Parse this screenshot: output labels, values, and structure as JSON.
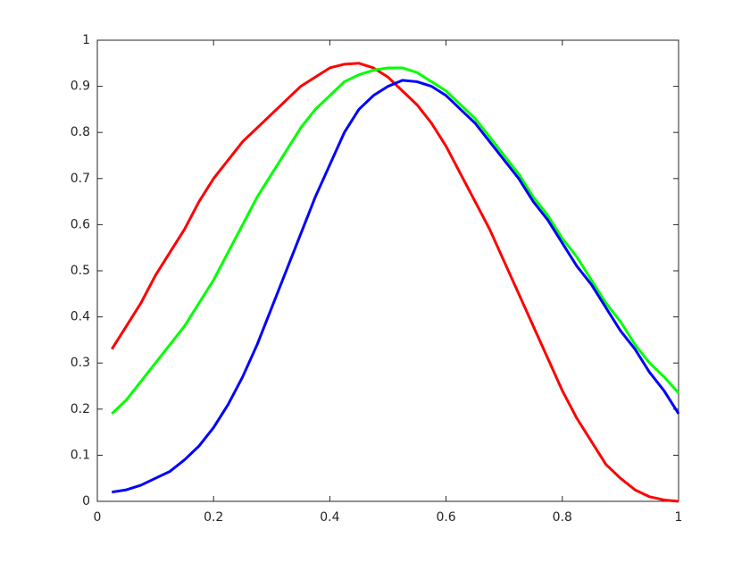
{
  "chart_data": {
    "type": "line",
    "x": [
      0.025,
      0.05,
      0.075,
      0.1,
      0.125,
      0.15,
      0.175,
      0.2,
      0.225,
      0.25,
      0.275,
      0.3,
      0.325,
      0.35,
      0.375,
      0.4,
      0.425,
      0.45,
      0.475,
      0.5,
      0.525,
      0.55,
      0.575,
      0.6,
      0.625,
      0.65,
      0.675,
      0.7,
      0.725,
      0.75,
      0.775,
      0.8,
      0.825,
      0.85,
      0.875,
      0.9,
      0.925,
      0.95,
      0.975,
      1.0
    ],
    "series": [
      {
        "color": "#ff0000",
        "values": [
          0.33,
          0.38,
          0.43,
          0.49,
          0.54,
          0.59,
          0.65,
          0.7,
          0.74,
          0.78,
          0.81,
          0.84,
          0.87,
          0.9,
          0.92,
          0.94,
          0.948,
          0.95,
          0.94,
          0.92,
          0.89,
          0.86,
          0.82,
          0.77,
          0.71,
          0.65,
          0.59,
          0.52,
          0.45,
          0.38,
          0.31,
          0.24,
          0.18,
          0.13,
          0.08,
          0.05,
          0.025,
          0.01,
          0.003,
          0.0
        ]
      },
      {
        "color": "#00ff00",
        "values": [
          0.19,
          0.22,
          0.26,
          0.3,
          0.34,
          0.38,
          0.43,
          0.48,
          0.54,
          0.6,
          0.66,
          0.71,
          0.76,
          0.81,
          0.85,
          0.88,
          0.91,
          0.925,
          0.935,
          0.94,
          0.94,
          0.93,
          0.91,
          0.89,
          0.86,
          0.83,
          0.79,
          0.75,
          0.71,
          0.66,
          0.62,
          0.57,
          0.53,
          0.48,
          0.43,
          0.39,
          0.34,
          0.3,
          0.27,
          0.235
        ]
      },
      {
        "color": "#0000ff",
        "values": [
          0.02,
          0.025,
          0.035,
          0.05,
          0.065,
          0.09,
          0.12,
          0.16,
          0.21,
          0.27,
          0.34,
          0.42,
          0.5,
          0.58,
          0.66,
          0.73,
          0.8,
          0.85,
          0.88,
          0.9,
          0.913,
          0.91,
          0.9,
          0.88,
          0.85,
          0.82,
          0.78,
          0.74,
          0.7,
          0.65,
          0.61,
          0.56,
          0.51,
          0.47,
          0.42,
          0.37,
          0.33,
          0.28,
          0.24,
          0.19
        ]
      }
    ],
    "xlim": [
      0,
      1
    ],
    "xticks": [
      0,
      0.2,
      0.4,
      0.6,
      0.8,
      1
    ],
    "ylim": [
      0,
      1
    ],
    "yticks": [
      0,
      0.1,
      0.2,
      0.3,
      0.4,
      0.5,
      0.6,
      0.7,
      0.8,
      0.9,
      1
    ],
    "grid": false
  }
}
